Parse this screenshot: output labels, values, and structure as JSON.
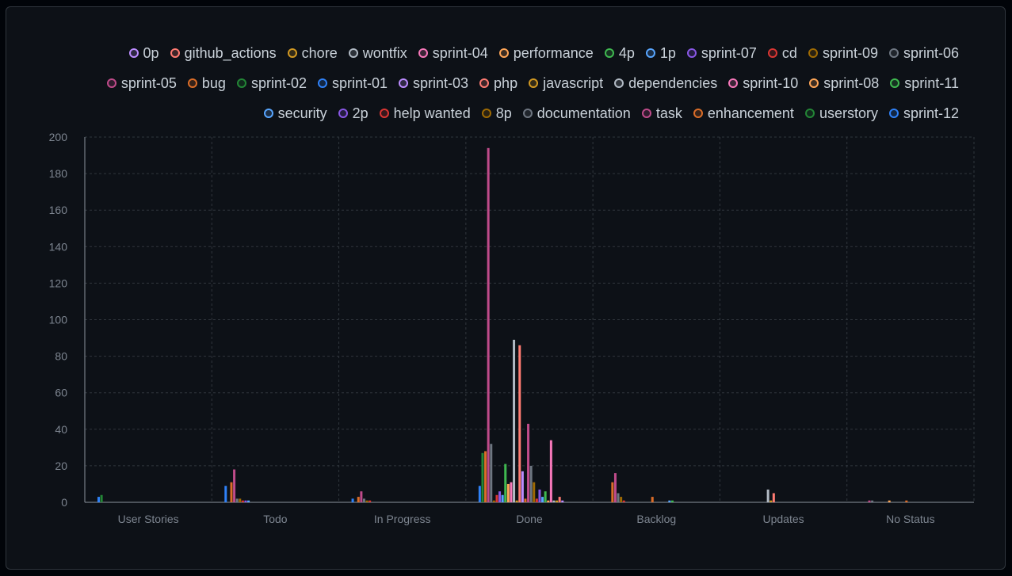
{
  "chart_data": {
    "type": "bar",
    "categories": [
      "User Stories",
      "Todo",
      "In Progress",
      "Done",
      "Backlog",
      "Updates",
      "No Status"
    ],
    "yticks": [
      0,
      20,
      40,
      60,
      80,
      100,
      120,
      140,
      160,
      180,
      200
    ],
    "ylim": [
      0,
      200
    ],
    "grid": true,
    "legend_position": "top-right",
    "series": [
      {
        "name": "sprint-01",
        "color": "#2f81f7",
        "values": [
          3,
          9,
          2,
          9,
          0,
          0,
          0
        ]
      },
      {
        "name": "sprint-02",
        "color": "#238636",
        "values": [
          4,
          0,
          0,
          27,
          0,
          0,
          0
        ]
      },
      {
        "name": "enhancement",
        "color": "#db6d28",
        "values": [
          0,
          11,
          3,
          28,
          11,
          0,
          0
        ]
      },
      {
        "name": "task",
        "color": "#bf4b8a",
        "values": [
          0,
          18,
          6,
          194,
          16,
          0,
          1
        ]
      },
      {
        "name": "documentation",
        "color": "#6e7681",
        "values": [
          0,
          2,
          2,
          32,
          5,
          0,
          1
        ]
      },
      {
        "name": "8p",
        "color": "#9e6a03",
        "values": [
          0,
          2,
          1,
          1,
          3,
          0,
          0
        ]
      },
      {
        "name": "help wanted",
        "color": "#da3633",
        "values": [
          0,
          1,
          1,
          4,
          1,
          0,
          0
        ]
      },
      {
        "name": "2p",
        "color": "#8957e5",
        "values": [
          0,
          1,
          0,
          6,
          0,
          0,
          0
        ]
      },
      {
        "name": "security",
        "color": "#58a6ff",
        "values": [
          0,
          1,
          0,
          4,
          0,
          0,
          0
        ]
      },
      {
        "name": "sprint-11",
        "color": "#3fb950",
        "values": [
          0,
          0,
          0,
          21,
          0,
          0,
          0
        ]
      },
      {
        "name": "sprint-08",
        "color": "#ffa657",
        "values": [
          0,
          0,
          0,
          10,
          0,
          0,
          1
        ]
      },
      {
        "name": "sprint-10",
        "color": "#f778ba",
        "values": [
          0,
          0,
          0,
          11,
          0,
          0,
          0
        ]
      },
      {
        "name": "dependencies",
        "color": "#b1bac4",
        "values": [
          0,
          0,
          0,
          89,
          0,
          7,
          0
        ]
      },
      {
        "name": "javascript",
        "color": "#d29922",
        "values": [
          0,
          0,
          0,
          1,
          0,
          1,
          0
        ]
      },
      {
        "name": "php",
        "color": "#ff7b72",
        "values": [
          0,
          0,
          0,
          86,
          0,
          5,
          0
        ]
      },
      {
        "name": "sprint-03",
        "color": "#bc8cff",
        "values": [
          0,
          0,
          0,
          17,
          0,
          0,
          0
        ]
      },
      {
        "name": "bug",
        "color": "#db6d28",
        "values": [
          0,
          0,
          0,
          2,
          3,
          0,
          1
        ]
      },
      {
        "name": "sprint-05",
        "color": "#bf4b8a",
        "values": [
          0,
          0,
          0,
          43,
          0,
          0,
          0
        ]
      },
      {
        "name": "sprint-06",
        "color": "#6e7681",
        "values": [
          0,
          0,
          0,
          20,
          0,
          0,
          0
        ]
      },
      {
        "name": "sprint-09",
        "color": "#9e6a03",
        "values": [
          0,
          0,
          0,
          11,
          0,
          0,
          0
        ]
      },
      {
        "name": "cd",
        "color": "#da3633",
        "values": [
          0,
          0,
          0,
          2,
          0,
          0,
          0
        ]
      },
      {
        "name": "sprint-07",
        "color": "#8957e5",
        "values": [
          0,
          0,
          0,
          7,
          0,
          0,
          0
        ]
      },
      {
        "name": "1p",
        "color": "#58a6ff",
        "values": [
          0,
          0,
          0,
          3,
          1,
          0,
          0
        ]
      },
      {
        "name": "4p",
        "color": "#3fb950",
        "values": [
          0,
          0,
          0,
          6,
          1,
          0,
          0
        ]
      },
      {
        "name": "performance",
        "color": "#ffa657",
        "values": [
          0,
          0,
          0,
          1,
          0,
          0,
          0
        ]
      },
      {
        "name": "sprint-04",
        "color": "#f778ba",
        "values": [
          0,
          0,
          0,
          34,
          0,
          0,
          0
        ]
      },
      {
        "name": "wontfix",
        "color": "#b1bac4",
        "values": [
          0,
          0,
          0,
          1,
          0,
          0,
          0
        ]
      },
      {
        "name": "chore",
        "color": "#d29922",
        "values": [
          0,
          0,
          0,
          1,
          0,
          0,
          0
        ]
      },
      {
        "name": "github_actions",
        "color": "#ff7b72",
        "values": [
          0,
          0,
          0,
          3,
          0,
          0,
          0
        ]
      },
      {
        "name": "0p",
        "color": "#bc8cff",
        "values": [
          0,
          0,
          0,
          1,
          0,
          0,
          0
        ]
      },
      {
        "name": "userstory",
        "color": "#238636",
        "values": [
          0,
          0,
          0,
          0,
          0,
          0,
          0
        ]
      },
      {
        "name": "sprint-12",
        "color": "#2f81f7",
        "values": [
          0,
          0,
          0,
          0,
          0,
          0,
          0
        ]
      }
    ],
    "legend_order": [
      "0p",
      "github_actions",
      "chore",
      "wontfix",
      "sprint-04",
      "performance",
      "4p",
      "1p",
      "sprint-07",
      "cd",
      "sprint-09",
      "sprint-06",
      "sprint-05",
      "bug",
      "sprint-02",
      "sprint-01",
      "sprint-03",
      "php",
      "javascript",
      "dependencies",
      "sprint-10",
      "sprint-08",
      "sprint-11",
      "security",
      "2p",
      "help wanted",
      "8p",
      "documentation",
      "task",
      "enhancement",
      "userstory",
      "sprint-12"
    ]
  }
}
